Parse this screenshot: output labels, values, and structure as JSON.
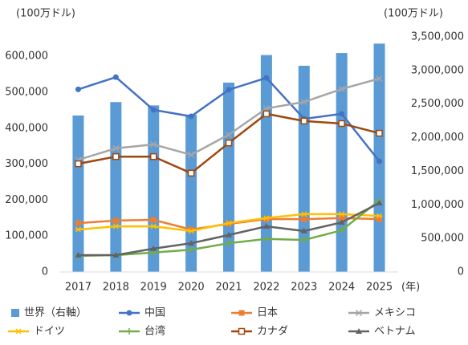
{
  "chart_data": {
    "type": "bar-line",
    "y_label": "(100万ドル)",
    "y2_label": "(100万ドル)",
    "x_unit": "(年)",
    "categories": [
      "2017",
      "2018",
      "2019",
      "2020",
      "2021",
      "2022",
      "2023",
      "2024",
      "2025"
    ],
    "ylim": [
      0,
      654000
    ],
    "yticks": [
      0,
      {
        "value": 100000,
        "label": "100,000"
      },
      {
        "value": 200000,
        "label": "200,000"
      },
      {
        "value": 300000,
        "label": "300,000"
      },
      {
        "value": 400000,
        "label": "400,000"
      },
      {
        "value": 500000,
        "label": "500,000"
      },
      {
        "value": 600000,
        "label": "600,000"
      }
    ],
    "y2lim": [
      0,
      3500000
    ],
    "y2ticks": [
      0,
      {
        "value": 500000,
        "label": "500,000"
      },
      {
        "value": 1000000,
        "label": "1,000,000"
      },
      {
        "value": 1500000,
        "label": "1,500,000"
      },
      {
        "value": 2000000,
        "label": "2,000,000"
      },
      {
        "value": 2500000,
        "label": "2,500,000"
      },
      {
        "value": 3000000,
        "label": "3,000,000"
      },
      {
        "value": 3500000,
        "label": "3,500,000"
      }
    ],
    "series": [
      {
        "name": "世界（右軸）",
        "type": "bar",
        "axis": "y2",
        "color": "#5b9bd5",
        "values": [
          2330000,
          2530000,
          2480000,
          2340000,
          2820000,
          3230000,
          3070000,
          3260000,
          3400000
        ]
      },
      {
        "name": "中国",
        "type": "line",
        "marker": "circle",
        "color": "#4472c4",
        "values": [
          508000,
          542000,
          451000,
          433000,
          507000,
          540000,
          426000,
          440000,
          308000
        ]
      },
      {
        "name": "日本",
        "type": "line",
        "marker": "square",
        "color": "#ed7d31",
        "values": [
          136000,
          143000,
          145000,
          118000,
          134000,
          147000,
          147000,
          150000,
          147000
        ]
      },
      {
        "name": "メキシコ",
        "type": "line",
        "marker": "cross",
        "color": "#a5a5a5",
        "values": [
          312000,
          344000,
          355000,
          326000,
          382000,
          455000,
          473000,
          509000,
          538000
        ]
      },
      {
        "name": "ドイツ",
        "type": "line",
        "marker": "star",
        "color": "#ffc000",
        "values": [
          118000,
          127000,
          127000,
          114000,
          136000,
          150000,
          161000,
          161000,
          156000
        ]
      },
      {
        "name": "台湾",
        "type": "line",
        "marker": "plus",
        "color": "#70ad47",
        "values": [
          45000,
          47000,
          54000,
          62000,
          80000,
          92000,
          89000,
          116000,
          199000
        ]
      },
      {
        "name": "カナダ",
        "type": "line",
        "marker": "hollow-square",
        "color": "#9e480e",
        "values": [
          301000,
          321000,
          321000,
          275000,
          359000,
          440000,
          420000,
          413000,
          386000
        ]
      },
      {
        "name": "ベトナム",
        "type": "line",
        "marker": "triangle",
        "color": "#636363",
        "values": [
          47000,
          47000,
          65000,
          80000,
          103000,
          127000,
          114000,
          138000,
          192000
        ]
      }
    ]
  }
}
